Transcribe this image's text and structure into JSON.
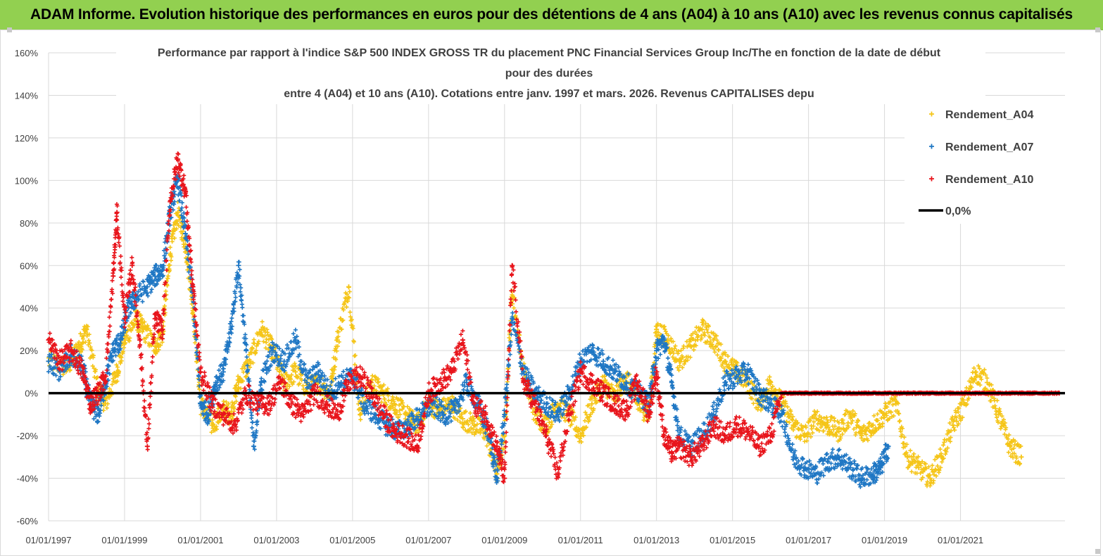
{
  "header": {
    "banner": "ADAM Informe. Evolution historique des performances en euros pour des détentions de 4 ans (A04) à 10 ans (A10) avec les revenus connus capitalisés"
  },
  "chart_data": {
    "type": "scatter",
    "title_lines": [
      "Performance par rapport à l'indice S&P 500 INDEX GROSS TR  du placement PNC Financial Services Group Inc/The en fonction de la  date de début",
      "pour des durées",
      "entre 4 (A04)  et 10 ans (A10).  Cotations entre janv. 1997 et mars. 2026.  Revenus CAPITALISES depu"
    ],
    "y_ticks": [
      "160%",
      "140%",
      "120%",
      "100%",
      "80%",
      "60%",
      "40%",
      "20%",
      "0%",
      "-20%",
      "-40%",
      "-60%"
    ],
    "x_ticks": [
      "01/01/1997",
      "01/01/1999",
      "01/01/2001",
      "01/01/2003",
      "01/01/2005",
      "01/01/2007",
      "01/01/2009",
      "01/01/2011",
      "01/01/2013",
      "01/01/2015",
      "01/01/2017",
      "01/01/2019",
      "01/01/2021"
    ],
    "ylim": [
      -60,
      160
    ],
    "xlim": [
      1997.0,
      2023.75
    ],
    "legend_position": "right",
    "colors": {
      "A04": "#f5c518",
      "A07": "#1f77c4",
      "A10": "#e8141b",
      "zero": "#000000"
    },
    "series": [
      {
        "name": "Rendement_A04",
        "key": "A04",
        "x": [
          1997.0,
          1997.5,
          1997.8,
          1998.0,
          1998.3,
          1998.5,
          1998.8,
          1999.0,
          1999.3,
          1999.5,
          1999.8,
          2000.0,
          2000.2,
          2000.4,
          2000.6,
          2000.8,
          2001.0,
          2001.3,
          2001.6,
          2001.8,
          2002.0,
          2002.3,
          2002.6,
          2002.9,
          2003.2,
          2003.5,
          2003.8,
          2004.1,
          2004.4,
          2004.6,
          2004.9,
          2005.2,
          2005.5,
          2005.8,
          2006.1,
          2006.4,
          2006.7,
          2007.0,
          2007.3,
          2007.6,
          2007.9,
          2008.2,
          2008.5,
          2008.8,
          2009.0,
          2009.2,
          2009.5,
          2009.8,
          2010.1,
          2010.4,
          2010.7,
          2011.0,
          2011.3,
          2011.6,
          2011.9,
          2012.2,
          2012.5,
          2012.8,
          2013.0,
          2013.3,
          2013.6,
          2013.9,
          2014.2,
          2014.5,
          2014.8,
          2015.1,
          2015.4,
          2015.7,
          2016.0,
          2016.3,
          2016.6,
          2016.9,
          2017.2,
          2017.5,
          2017.8,
          2018.1,
          2018.4,
          2018.7,
          2019.0,
          2019.3,
          2019.6,
          2019.9,
          2020.2,
          2020.5,
          2020.8,
          2021.1,
          2021.4,
          2021.7,
          2022.0,
          2022.3,
          2022.6
        ],
        "values": [
          15,
          12,
          22,
          30,
          2,
          -5,
          10,
          25,
          35,
          30,
          22,
          28,
          65,
          85,
          70,
          40,
          -5,
          -15,
          -8,
          -10,
          5,
          15,
          30,
          20,
          5,
          10,
          2,
          5,
          0,
          25,
          50,
          -10,
          5,
          0,
          -5,
          -10,
          -15,
          -5,
          -8,
          -5,
          -12,
          -15,
          -18,
          -38,
          -20,
          48,
          10,
          -10,
          -15,
          -5,
          -10,
          -20,
          -5,
          5,
          -2,
          8,
          -5,
          -10,
          30,
          25,
          15,
          22,
          30,
          25,
          15,
          10,
          5,
          -5,
          5,
          -5,
          -15,
          -20,
          -12,
          -15,
          -18,
          -10,
          -20,
          -15,
          -10,
          -5,
          -30,
          -35,
          -40,
          -30,
          -15,
          -5,
          10,
          5,
          -10,
          -25,
          -30
        ]
      },
      {
        "name": "Rendement_A07",
        "key": "A07",
        "x": [
          1997.0,
          1997.3,
          1997.6,
          1997.9,
          1998.1,
          1998.3,
          1998.5,
          1998.7,
          1998.9,
          1999.1,
          1999.3,
          1999.6,
          1999.8,
          2000.0,
          2000.2,
          2000.4,
          2000.6,
          2000.8,
          2001.0,
          2001.2,
          2001.4,
          2001.6,
          2001.8,
          2002.0,
          2002.2,
          2002.4,
          2002.6,
          2002.9,
          2003.2,
          2003.5,
          2003.8,
          2004.1,
          2004.4,
          2004.7,
          2005.0,
          2005.3,
          2005.6,
          2005.9,
          2006.2,
          2006.5,
          2006.8,
          2007.1,
          2007.4,
          2007.7,
          2008.0,
          2008.3,
          2008.6,
          2008.8,
          2009.0,
          2009.2,
          2009.5,
          2009.8,
          2010.1,
          2010.4,
          2010.7,
          2011.0,
          2011.3,
          2011.6,
          2011.9,
          2012.2,
          2012.5,
          2012.8,
          2013.0,
          2013.2,
          2013.4,
          2013.6,
          2013.9,
          2014.2,
          2014.5,
          2014.8,
          2015.1,
          2015.4,
          2015.7,
          2016.0,
          2016.3,
          2016.6,
          2016.9,
          2017.2,
          2017.5,
          2017.8,
          2018.1,
          2018.4,
          2018.7,
          2018.9,
          2019.1
        ],
        "values": [
          15,
          10,
          18,
          12,
          -5,
          -10,
          5,
          20,
          25,
          40,
          45,
          50,
          55,
          58,
          85,
          100,
          75,
          45,
          -5,
          -10,
          5,
          10,
          30,
          60,
          20,
          -25,
          5,
          20,
          15,
          25,
          5,
          10,
          0,
          5,
          8,
          -5,
          -10,
          -15,
          -18,
          -15,
          -10,
          -5,
          -10,
          -8,
          5,
          -5,
          -20,
          -40,
          -10,
          35,
          10,
          0,
          -5,
          -10,
          0,
          15,
          20,
          15,
          10,
          5,
          0,
          -5,
          20,
          25,
          5,
          -20,
          -25,
          -20,
          -10,
          5,
          8,
          10,
          0,
          -5,
          -10,
          -30,
          -35,
          -38,
          -32,
          -30,
          -35,
          -40,
          -38,
          -35,
          -25
        ]
      },
      {
        "name": "Rendement_A10",
        "key": "A10",
        "x": [
          1997.0,
          1997.3,
          1997.6,
          1997.9,
          1998.1,
          1998.3,
          1998.5,
          1998.7,
          1998.8,
          1999.0,
          1999.2,
          1999.4,
          1999.6,
          1999.8,
          2000.0,
          2000.2,
          2000.4,
          2000.6,
          2000.8,
          2001.0,
          2001.3,
          2001.6,
          2001.9,
          2002.2,
          2002.5,
          2002.8,
          2003.1,
          2003.4,
          2003.7,
          2004.0,
          2004.3,
          2004.6,
          2004.9,
          2005.2,
          2005.5,
          2005.8,
          2006.1,
          2006.4,
          2006.7,
          2007.0,
          2007.3,
          2007.6,
          2007.9,
          2008.2,
          2008.5,
          2008.8,
          2009.0,
          2009.2,
          2009.5,
          2009.8,
          2010.1,
          2010.4,
          2010.7,
          2011.0,
          2011.3,
          2011.6,
          2011.9,
          2012.2,
          2012.5,
          2012.8,
          2013.0,
          2013.2,
          2013.4,
          2013.6,
          2013.9,
          2014.2,
          2014.5,
          2014.8,
          2015.1,
          2015.4,
          2015.7,
          2016.0,
          2016.3,
          2016.6,
          2016.9,
          2017.2,
          2017.5,
          2017.8,
          2018.1,
          2018.4,
          2018.7,
          2019.0,
          2019.3,
          2019.6,
          2019.9,
          2020.2,
          2020.5,
          2020.8,
          2021.1,
          2021.4,
          2021.7,
          2022.0,
          2022.3,
          2022.6,
          2022.9,
          2023.2,
          2023.6
        ],
        "values": [
          25,
          15,
          20,
          10,
          -5,
          0,
          8,
          55,
          85,
          35,
          60,
          25,
          -25,
          35,
          30,
          90,
          110,
          95,
          50,
          10,
          -5,
          -10,
          -15,
          0,
          -5,
          -5,
          5,
          -5,
          -10,
          0,
          -5,
          -10,
          5,
          8,
          0,
          -10,
          -18,
          -20,
          -25,
          0,
          5,
          10,
          25,
          -5,
          -10,
          -25,
          -40,
          60,
          5,
          -5,
          -20,
          -38,
          -10,
          10,
          5,
          0,
          -5,
          -8,
          5,
          -10,
          10,
          -20,
          -28,
          -25,
          -30,
          -25,
          -15,
          -20,
          -15,
          -18,
          -25,
          -20,
          0,
          0,
          0,
          0,
          0,
          0,
          0,
          0,
          0,
          0,
          0,
          0,
          0,
          0,
          0,
          0,
          0,
          0,
          0,
          0,
          0,
          0,
          0,
          0,
          0
        ]
      }
    ],
    "legend": [
      {
        "label": "Rendement_A04",
        "key": "A04",
        "marker": "plus"
      },
      {
        "label": "Rendement_A07",
        "key": "A07",
        "marker": "plus"
      },
      {
        "label": "Rendement_A10",
        "key": "A10",
        "marker": "plus"
      },
      {
        "label": "0,0%",
        "key": "zero",
        "marker": "line"
      }
    ]
  }
}
